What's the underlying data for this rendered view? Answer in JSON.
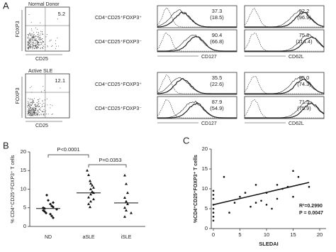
{
  "panel_a": {
    "label": "A",
    "rows": [
      {
        "title": "Normal Donor",
        "y_axis": "FOXP3",
        "x_axis": "CD25",
        "gate_value": "5.2",
        "populations": [
          "CD4⁺CD25⁺FOXP3⁺",
          "CD4⁺CD25⁺FOXP3⁻"
        ],
        "cd127": [
          [
            "37.3",
            "(18.5)"
          ],
          [
            "90.4",
            "(66.8)"
          ]
        ],
        "cd62l": [
          [
            "92.2",
            "(96.9)"
          ],
          [
            "75.8",
            "(114.4)"
          ]
        ],
        "cd127_axis": "CD127",
        "cd62l_axis": "CD62L"
      },
      {
        "title": "Active SLE",
        "y_axis": "FOXP3",
        "x_axis": "CD25",
        "gate_value": "12.1",
        "populations": [
          "CD4⁺CD25⁺FOXP3⁺",
          "CD4⁺CD25⁺FOXP3⁻"
        ],
        "cd127": [
          [
            "35.5",
            "(22.6)"
          ],
          [
            "87.9",
            "(54.9)"
          ]
        ],
        "cd62l": [
          [
            "95.0",
            "(74.3)"
          ],
          [
            "71.5",
            "(75.9)"
          ]
        ],
        "cd127_axis": "CD127",
        "cd62l_axis": "CD62L"
      }
    ]
  },
  "chart_data": [
    {
      "type": "dot",
      "label": "B",
      "y_label": "% CD4⁺CD25⁺FOXP3⁺ T cells",
      "categories": [
        "ND",
        "aSLE",
        "iSLE"
      ],
      "values": [
        [
          8.4,
          7.0,
          6.4,
          6.0,
          5.5,
          5.2,
          5.0,
          4.8,
          4.6,
          4.3,
          4.0,
          3.6,
          3.3,
          2.8,
          2.3
        ],
        [
          15.0,
          13.8,
          12.2,
          11.5,
          11.0,
          10.4,
          10.0,
          9.3,
          9.0,
          8.6,
          7.8,
          7.3,
          6.7,
          6.0,
          5.2
        ],
        [
          13.7,
          11.4,
          9.0,
          7.7,
          6.7,
          6.0,
          5.0,
          4.3,
          3.6,
          2.6
        ]
      ],
      "medians": [
        4.8,
        9.0,
        6.3
      ],
      "annotations": [
        "P<0.0001",
        "P=0.0353"
      ],
      "ylim": [
        0,
        20
      ],
      "yticks": [
        0,
        5,
        10,
        15,
        20
      ],
      "color": "#111"
    },
    {
      "type": "scatter",
      "label": "C",
      "y_label": "%CD4⁺CD25⁺FOXP3⁺ T cells",
      "x_label": "SLEDAI",
      "x": [
        0,
        0,
        0,
        0,
        0,
        0,
        0,
        0,
        2,
        3,
        4,
        5,
        6,
        7,
        8,
        8,
        9,
        10,
        10,
        11,
        12,
        12,
        13,
        14,
        15,
        15,
        16,
        18
      ],
      "y": [
        2,
        3,
        4,
        5,
        6,
        7.5,
        8.5,
        9.5,
        13,
        4,
        6.5,
        8,
        9,
        5.5,
        6.5,
        11,
        7,
        6,
        9,
        5,
        11,
        7.5,
        10,
        10.5,
        8,
        14.5,
        13,
        10.5
      ],
      "regression": {
        "x": [
          0,
          18
        ],
        "y": [
          6,
          11.6
        ]
      },
      "annotations": [
        "R²=0.2990",
        "P = 0.0047"
      ],
      "xlim": [
        0,
        20
      ],
      "xticks": [
        0,
        5,
        10,
        15,
        20
      ],
      "ylim": [
        0,
        20
      ],
      "yticks": [
        0,
        5,
        10,
        15,
        20
      ],
      "color": "#111"
    }
  ]
}
